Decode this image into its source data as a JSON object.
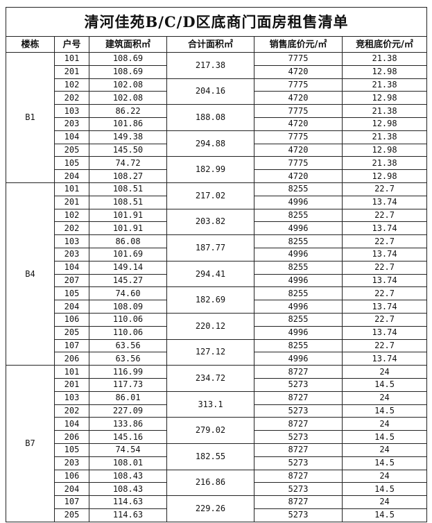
{
  "title": "清河佳苑B/C/D区底商门面房租售清单",
  "headers": [
    "楼栋",
    "户号",
    "建筑面积㎡",
    "合计面积㎡",
    "销售底价元/㎡",
    "竞租底价元/㎡"
  ],
  "buildings": [
    {
      "name": "B1",
      "pairs": [
        {
          "total": "217.38",
          "units": [
            {
              "no": "101",
              "area": "108.69",
              "sale": "7775",
              "rent": "21.38"
            },
            {
              "no": "201",
              "area": "108.69",
              "sale": "4720",
              "rent": "12.98"
            }
          ]
        },
        {
          "total": "204.16",
          "units": [
            {
              "no": "102",
              "area": "102.08",
              "sale": "7775",
              "rent": "21.38"
            },
            {
              "no": "202",
              "area": "102.08",
              "sale": "4720",
              "rent": "12.98"
            }
          ]
        },
        {
          "total": "188.08",
          "units": [
            {
              "no": "103",
              "area": "86.22",
              "sale": "7775",
              "rent": "21.38"
            },
            {
              "no": "203",
              "area": "101.86",
              "sale": "4720",
              "rent": "12.98"
            }
          ]
        },
        {
          "total": "294.88",
          "units": [
            {
              "no": "104",
              "area": "149.38",
              "sale": "7775",
              "rent": "21.38"
            },
            {
              "no": "205",
              "area": "145.50",
              "sale": "4720",
              "rent": "12.98"
            }
          ]
        },
        {
          "total": "182.99",
          "units": [
            {
              "no": "105",
              "area": "74.72",
              "sale": "7775",
              "rent": "21.38"
            },
            {
              "no": "204",
              "area": "108.27",
              "sale": "4720",
              "rent": "12.98"
            }
          ]
        }
      ]
    },
    {
      "name": "B4",
      "pairs": [
        {
          "total": "217.02",
          "units": [
            {
              "no": "101",
              "area": "108.51",
              "sale": "8255",
              "rent": "22.7"
            },
            {
              "no": "201",
              "area": "108.51",
              "sale": "4996",
              "rent": "13.74"
            }
          ]
        },
        {
          "total": "203.82",
          "units": [
            {
              "no": "102",
              "area": "101.91",
              "sale": "8255",
              "rent": "22.7"
            },
            {
              "no": "202",
              "area": "101.91",
              "sale": "4996",
              "rent": "13.74"
            }
          ]
        },
        {
          "total": "187.77",
          "units": [
            {
              "no": "103",
              "area": "86.08",
              "sale": "8255",
              "rent": "22.7"
            },
            {
              "no": "203",
              "area": "101.69",
              "sale": "4996",
              "rent": "13.74"
            }
          ]
        },
        {
          "total": "294.41",
          "units": [
            {
              "no": "104",
              "area": "149.14",
              "sale": "8255",
              "rent": "22.7"
            },
            {
              "no": "207",
              "area": "145.27",
              "sale": "4996",
              "rent": "13.74"
            }
          ]
        },
        {
          "total": "182.69",
          "units": [
            {
              "no": "105",
              "area": "74.60",
              "sale": "8255",
              "rent": "22.7"
            },
            {
              "no": "204",
              "area": "108.09",
              "sale": "4996",
              "rent": "13.74"
            }
          ]
        },
        {
          "total": "220.12",
          "units": [
            {
              "no": "106",
              "area": "110.06",
              "sale": "8255",
              "rent": "22.7"
            },
            {
              "no": "205",
              "area": "110.06",
              "sale": "4996",
              "rent": "13.74"
            }
          ]
        },
        {
          "total": "127.12",
          "units": [
            {
              "no": "107",
              "area": "63.56",
              "sale": "8255",
              "rent": "22.7"
            },
            {
              "no": "206",
              "area": "63.56",
              "sale": "4996",
              "rent": "13.74"
            }
          ]
        }
      ]
    },
    {
      "name": "B7",
      "pairs": [
        {
          "total": "234.72",
          "units": [
            {
              "no": "101",
              "area": "116.99",
              "sale": "8727",
              "rent": "24"
            },
            {
              "no": "201",
              "area": "117.73",
              "sale": "5273",
              "rent": "14.5"
            }
          ]
        },
        {
          "total": "313.1",
          "units": [
            {
              "no": "103",
              "area": "86.01",
              "sale": "8727",
              "rent": "24"
            },
            {
              "no": "202",
              "area": "227.09",
              "sale": "5273",
              "rent": "14.5"
            }
          ]
        },
        {
          "total": "279.02",
          "units": [
            {
              "no": "104",
              "area": "133.86",
              "sale": "8727",
              "rent": "24"
            },
            {
              "no": "206",
              "area": "145.16",
              "sale": "5273",
              "rent": "14.5"
            }
          ]
        },
        {
          "total": "182.55",
          "units": [
            {
              "no": "105",
              "area": "74.54",
              "sale": "8727",
              "rent": "24"
            },
            {
              "no": "203",
              "area": "108.01",
              "sale": "5273",
              "rent": "14.5"
            }
          ]
        },
        {
          "total": "216.86",
          "units": [
            {
              "no": "106",
              "area": "108.43",
              "sale": "8727",
              "rent": "24"
            },
            {
              "no": "204",
              "area": "108.43",
              "sale": "5273",
              "rent": "14.5"
            }
          ]
        },
        {
          "total": "229.26",
          "units": [
            {
              "no": "107",
              "area": "114.63",
              "sale": "8727",
              "rent": "24"
            },
            {
              "no": "205",
              "area": "114.63",
              "sale": "5273",
              "rent": "14.5"
            }
          ]
        }
      ]
    }
  ]
}
